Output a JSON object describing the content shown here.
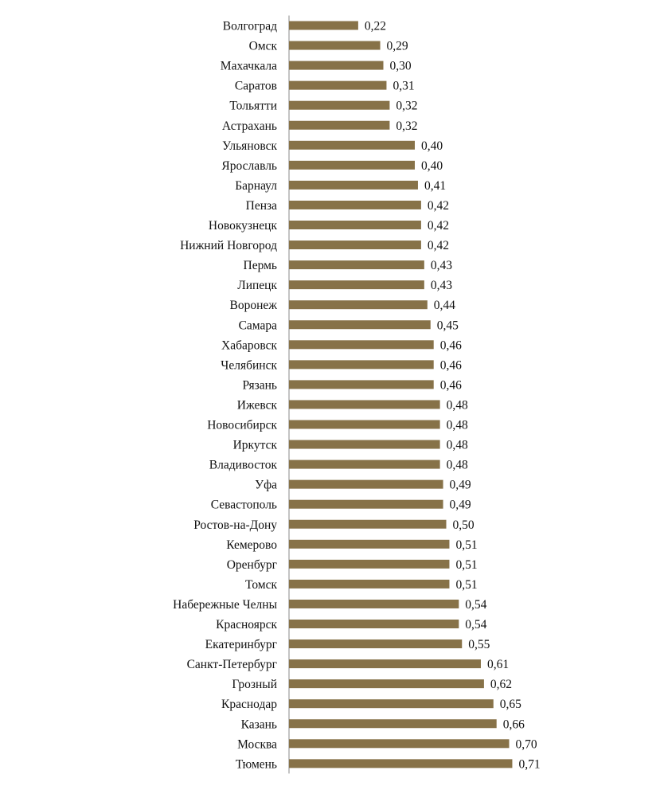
{
  "chart_data": {
    "type": "bar",
    "orientation": "horizontal",
    "title": "",
    "xlabel": "",
    "ylabel": "",
    "xlim": [
      0,
      0.8
    ],
    "grid": false,
    "bar_color": "#877248",
    "categories": [
      "Волгоград",
      "Омск",
      "Махачкала",
      "Саратов",
      "Тольятти",
      "Астрахань",
      "Ульяновск",
      "Ярославль",
      "Барнаул",
      "Пенза",
      "Новокузнецк",
      "Нижний Новгород",
      "Пермь",
      "Липецк",
      "Воронеж",
      "Самара",
      "Хабаровск",
      "Челябинск",
      "Рязань",
      "Ижевск",
      "Новосибирск",
      "Иркутск",
      "Владивосток",
      "Уфа",
      "Севастополь",
      "Ростов-на-Дону",
      "Кемерово",
      "Оренбург",
      "Томск",
      "Набережные Челны",
      "Красноярск",
      "Екатеринбург",
      "Санкт-Петербург",
      "Грозный",
      "Краснодар",
      "Казань",
      "Москва",
      "Тюмень"
    ],
    "values": [
      0.22,
      0.29,
      0.3,
      0.31,
      0.32,
      0.32,
      0.4,
      0.4,
      0.41,
      0.42,
      0.42,
      0.42,
      0.43,
      0.43,
      0.44,
      0.45,
      0.46,
      0.46,
      0.46,
      0.48,
      0.48,
      0.48,
      0.48,
      0.49,
      0.49,
      0.5,
      0.51,
      0.51,
      0.51,
      0.54,
      0.54,
      0.55,
      0.61,
      0.62,
      0.65,
      0.66,
      0.7,
      0.71
    ],
    "value_labels": [
      "0,22",
      "0,29",
      "0,30",
      "0,31",
      "0,32",
      "0,32",
      "0,40",
      "0,40",
      "0,41",
      "0,42",
      "0,42",
      "0,42",
      "0,43",
      "0,43",
      "0,44",
      "0,45",
      "0,46",
      "0,46",
      "0,46",
      "0,48",
      "0,48",
      "0,48",
      "0,48",
      "0,49",
      "0,49",
      "0,50",
      "0,51",
      "0,51",
      "0,51",
      "0,54",
      "0,54",
      "0,55",
      "0,61",
      "0,62",
      "0,65",
      "0,66",
      "0,70",
      "0,71"
    ]
  }
}
